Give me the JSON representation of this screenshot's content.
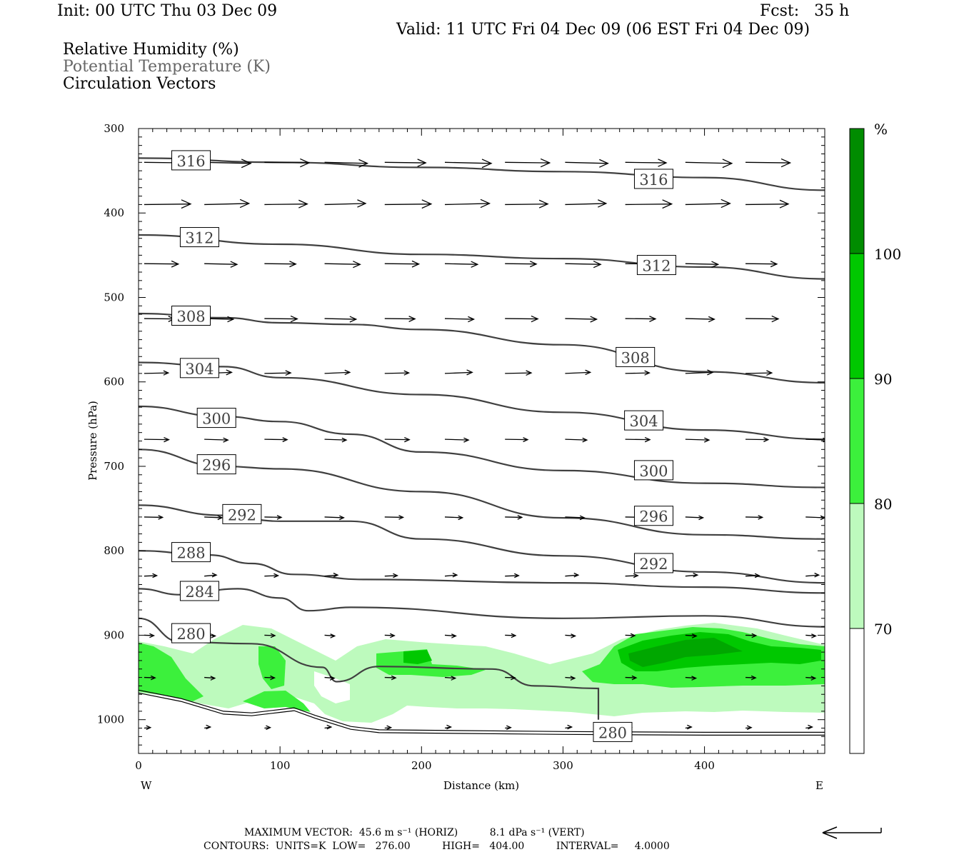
{
  "header": {
    "init": "Init: 00 UTC Thu 03 Dec 09",
    "fcst": "Fcst:   35 h",
    "valid": "Valid: 11 UTC Fri 04 Dec 09 (06 EST Fri 04 Dec 09)",
    "field1": "Relative Humidity (%)",
    "field2": "Potential Temperature (K)",
    "field3": "Circulation Vectors"
  },
  "footer": {
    "line1": "MAXIMUM VECTOR:  45.6 m s⁻¹ (HORIZ)          8.1 dPa s⁻¹ (VERT)",
    "line2": "CONTOURS:  UNITS=K  LOW=   276.00          HIGH=   404.00          INTERVAL=     4.0000"
  },
  "colors": {
    "rh70": "#bdfabd",
    "rh80": "#3cf03c",
    "rh90": "#00c800",
    "rh100": "#008c00",
    "contour": "#404040"
  },
  "chart_data": {
    "type": "contour",
    "xlabel": "Distance (km)",
    "ylabel": "Pressure (hPa)",
    "xlim": [
      0,
      485
    ],
    "ylim": [
      1040,
      300
    ],
    "xticks": [
      0,
      100,
      200,
      300,
      400
    ],
    "yticks": [
      300,
      400,
      500,
      600,
      700,
      800,
      900,
      1000
    ],
    "x_end_labels": {
      "left": "W",
      "right": "E"
    },
    "colorbar": {
      "unit": "%",
      "levels": [
        70,
        80,
        90,
        100
      ],
      "colors": [
        "#bdfabd",
        "#3cf03c",
        "#00c800",
        "#008c00"
      ]
    },
    "isentropes": [
      {
        "theta": 316,
        "points": [
          [
            0,
            335
          ],
          [
            100,
            340
          ],
          [
            200,
            346
          ],
          [
            300,
            351
          ],
          [
            400,
            358
          ],
          [
            485,
            373
          ]
        ]
      },
      {
        "theta": 312,
        "points": [
          [
            0,
            426
          ],
          [
            100,
            437
          ],
          [
            200,
            449
          ],
          [
            300,
            454
          ],
          [
            400,
            464
          ],
          [
            485,
            478
          ]
        ]
      },
      {
        "theta": 308,
        "points": [
          [
            0,
            519
          ],
          [
            60,
            524
          ],
          [
            100,
            530
          ],
          [
            150,
            532
          ],
          [
            200,
            538
          ],
          [
            300,
            556
          ],
          [
            400,
            588
          ],
          [
            485,
            601
          ]
        ]
      },
      {
        "theta": 304,
        "points": [
          [
            0,
            577
          ],
          [
            60,
            582
          ],
          [
            100,
            595
          ],
          [
            200,
            615
          ],
          [
            300,
            636
          ],
          [
            400,
            657
          ],
          [
            485,
            668
          ]
        ]
      },
      {
        "theta": 300,
        "points": [
          [
            0,
            629
          ],
          [
            60,
            641
          ],
          [
            100,
            647
          ],
          [
            150,
            662
          ],
          [
            200,
            683
          ],
          [
            300,
            705
          ],
          [
            400,
            720
          ],
          [
            485,
            725
          ]
        ]
      },
      {
        "theta": 296,
        "points": [
          [
            0,
            680
          ],
          [
            60,
            700
          ],
          [
            100,
            703
          ],
          [
            200,
            730
          ],
          [
            300,
            761
          ],
          [
            400,
            781
          ],
          [
            485,
            786
          ]
        ]
      },
      {
        "theta": 292,
        "points": [
          [
            0,
            746
          ],
          [
            60,
            758
          ],
          [
            100,
            765
          ],
          [
            150,
            765
          ],
          [
            200,
            786
          ],
          [
            300,
            806
          ],
          [
            400,
            825
          ],
          [
            485,
            838
          ]
        ]
      },
      {
        "theta": 288,
        "points": [
          [
            0,
            800
          ],
          [
            50,
            805
          ],
          [
            80,
            815
          ],
          [
            110,
            828
          ],
          [
            160,
            834
          ],
          [
            300,
            838
          ],
          [
            400,
            843
          ],
          [
            485,
            850
          ]
        ]
      },
      {
        "theta": 284,
        "points": [
          [
            0,
            845
          ],
          [
            30,
            852
          ],
          [
            70,
            845
          ],
          [
            100,
            856
          ],
          [
            120,
            871
          ],
          [
            150,
            867
          ],
          [
            300,
            880
          ],
          [
            400,
            877
          ],
          [
            485,
            890
          ]
        ]
      },
      {
        "theta": 280,
        "points": [
          [
            0,
            880
          ],
          [
            30,
            908
          ],
          [
            80,
            910
          ],
          [
            130,
            938
          ],
          [
            140,
            955
          ],
          [
            170,
            937
          ],
          [
            250,
            940
          ],
          [
            280,
            960
          ],
          [
            325,
            963
          ],
          [
            325,
            1000
          ]
        ]
      }
    ],
    "contour_labels": [
      {
        "text": "316",
        "x": 25,
        "p": 338
      },
      {
        "text": "316",
        "x": 352,
        "p": 360
      },
      {
        "text": "312",
        "x": 31,
        "p": 429
      },
      {
        "text": "312",
        "x": 354,
        "p": 462
      },
      {
        "text": "308",
        "x": 25,
        "p": 522
      },
      {
        "text": "308",
        "x": 339,
        "p": 571
      },
      {
        "text": "304",
        "x": 31,
        "p": 584
      },
      {
        "text": "304",
        "x": 345,
        "p": 646
      },
      {
        "text": "300",
        "x": 43,
        "p": 643
      },
      {
        "text": "300",
        "x": 352,
        "p": 705
      },
      {
        "text": "296",
        "x": 43,
        "p": 698
      },
      {
        "text": "296",
        "x": 352,
        "p": 759
      },
      {
        "text": "292",
        "x": 61,
        "p": 757
      },
      {
        "text": "292",
        "x": 352,
        "p": 815
      },
      {
        "text": "288",
        "x": 25,
        "p": 802
      },
      {
        "text": "284",
        "x": 31,
        "p": 848
      },
      {
        "text": "280",
        "x": 25,
        "p": 898
      },
      {
        "text": "280",
        "x": 323,
        "p": 1015
      }
    ],
    "vectors": [
      {
        "p": 340,
        "len": 0.85
      },
      {
        "p": 390,
        "len": 0.85
      },
      {
        "p": 460,
        "len": 0.65
      },
      {
        "p": 525,
        "len": 0.6
      },
      {
        "p": 590,
        "len": 0.5
      },
      {
        "p": 668,
        "len": 0.45
      },
      {
        "p": 760,
        "len": 0.35
      },
      {
        "p": 830,
        "len": 0.25
      },
      {
        "p": 900,
        "len": 0.2
      },
      {
        "p": 950,
        "len": 0.2
      },
      {
        "p": 1010,
        "len": 0.12
      }
    ]
  }
}
